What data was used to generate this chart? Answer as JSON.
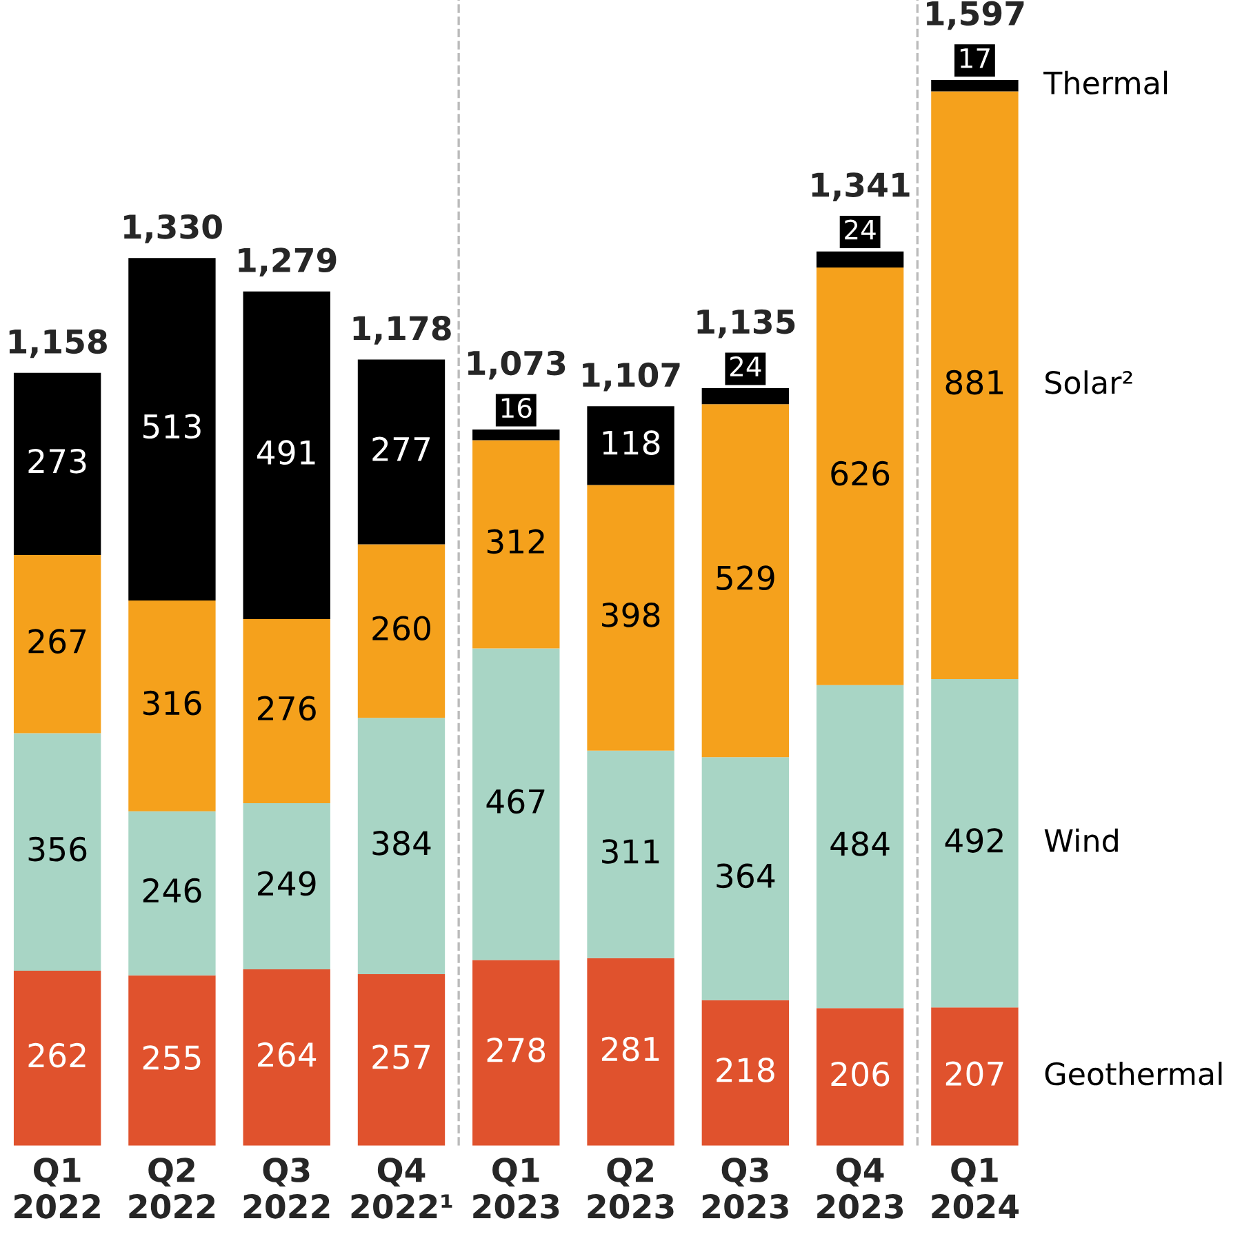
{
  "chart_data": {
    "type": "bar",
    "stacked": true,
    "categories": [
      "Q1\n2022",
      "Q2\n2022",
      "Q3\n2022",
      "Q4\n2022¹",
      "Q1\n2023",
      "Q2\n2023",
      "Q3\n2023",
      "Q4\n2023",
      "Q1\n2024"
    ],
    "series": [
      {
        "name": "Geothermal",
        "color": "#e0522d",
        "values": [
          262,
          255,
          264,
          257,
          278,
          281,
          218,
          206,
          207
        ]
      },
      {
        "name": "Wind",
        "color": "#a8d5c5",
        "values": [
          356,
          246,
          249,
          384,
          467,
          311,
          364,
          484,
          492
        ]
      },
      {
        "name": "Solar²",
        "color": "#f5a11c",
        "values": [
          267,
          316,
          276,
          260,
          312,
          398,
          529,
          626,
          881
        ]
      },
      {
        "name": "Thermal",
        "color": "#000000",
        "values": [
          273,
          513,
          491,
          277,
          16,
          118,
          24,
          24,
          17
        ]
      }
    ],
    "data_labels": true,
    "totals": [
      "1,158",
      "1,330",
      "1,279",
      "1,178",
      "1,073",
      "1,107",
      "1,135",
      "1,341",
      "1,597"
    ],
    "legend": "right",
    "grid": false
  }
}
